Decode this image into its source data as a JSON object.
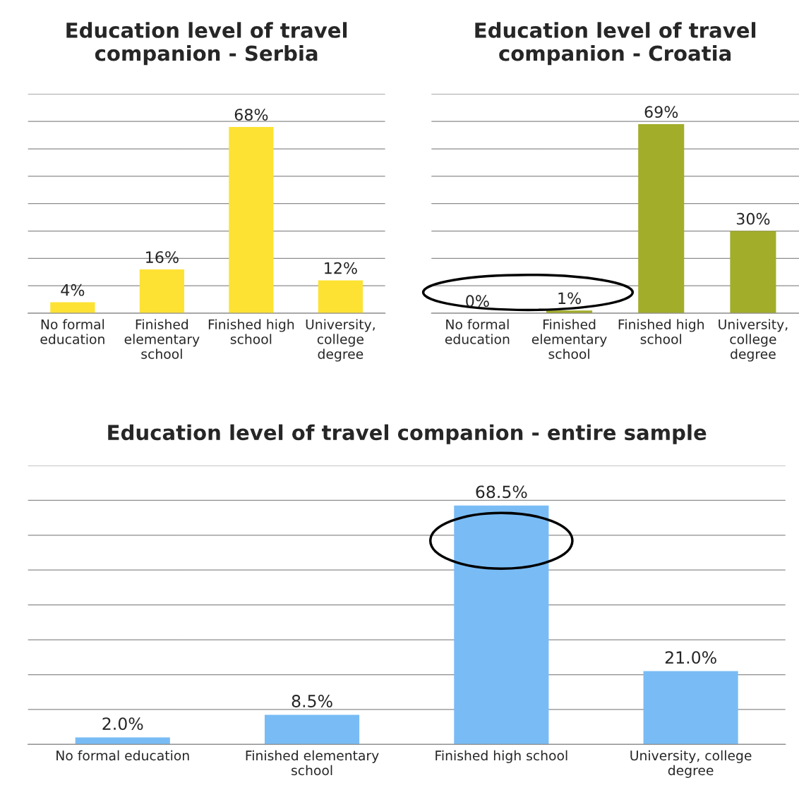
{
  "chart_data": [
    {
      "type": "bar",
      "title": "Education level of travel\ncompanion - Serbia",
      "categories": [
        "No formal\neducation",
        "Finished\nelementary\nschool",
        "Finished high\nschool",
        "University,\ncollege\ndegree"
      ],
      "values": [
        4,
        16,
        68,
        12
      ],
      "value_labels": [
        "4%",
        "16%",
        "68%",
        "12%"
      ],
      "color": "#fde234",
      "ylim": [
        0,
        80
      ],
      "yticks": [
        {
          "value": 0,
          "label": null
        },
        {
          "value": 10,
          "label": null
        },
        {
          "value": 20,
          "label": null
        },
        {
          "value": 30,
          "label": null
        },
        {
          "value": 40,
          "label": null
        },
        {
          "value": 50,
          "label": null
        },
        {
          "value": 60,
          "label": null
        },
        {
          "value": 70,
          "label": null
        },
        {
          "value": 80,
          "label": null
        }
      ],
      "grid": "y",
      "tick_labels": "x"
    },
    {
      "type": "bar",
      "title": "Education level of travel\ncompanion - Croatia",
      "categories": [
        "No formal\neducation",
        "Finished\nelementary\nschool",
        "Finished high\nschool",
        "University,\ncollege\ndegree"
      ],
      "values": [
        0,
        1,
        69,
        30
      ],
      "value_labels": [
        "0%",
        "1%",
        "69%",
        "30%"
      ],
      "color": "#a2ad2a",
      "ylim": [
        0,
        80
      ],
      "yticks": [
        {
          "value": 0,
          "label": null
        },
        {
          "value": 10,
          "label": null
        },
        {
          "value": 20,
          "label": null
        },
        {
          "value": 30,
          "label": null
        },
        {
          "value": 40,
          "label": null
        },
        {
          "value": 50,
          "label": null
        },
        {
          "value": 60,
          "label": null
        },
        {
          "value": 70,
          "label": null
        },
        {
          "value": 80,
          "label": null
        }
      ],
      "grid": "y",
      "tick_labels": "x"
    },
    {
      "type": "bar",
      "title": "Education level of travel companion - entire sample",
      "categories": [
        "No formal education",
        "Finished elementary\nschool",
        "Finished high school",
        "University, college\ndegree"
      ],
      "values": [
        2.0,
        8.5,
        68.5,
        21.0
      ],
      "value_labels": [
        "2.0%",
        "8.5%",
        "68.5%",
        "21.0%"
      ],
      "color": "#79bcf5",
      "ylim": [
        0,
        80
      ],
      "yticks": [
        {
          "value": 0,
          "label": null
        },
        {
          "value": 10,
          "label": null
        },
        {
          "value": 20,
          "label": null
        },
        {
          "value": 30,
          "label": null
        },
        {
          "value": 40,
          "label": null
        },
        {
          "value": 50,
          "label": null
        },
        {
          "value": 60,
          "label": null
        },
        {
          "value": 70,
          "label": null
        },
        {
          "value": 80,
          "label": null
        }
      ],
      "grid": "y",
      "tick_labels": "x"
    }
  ]
}
